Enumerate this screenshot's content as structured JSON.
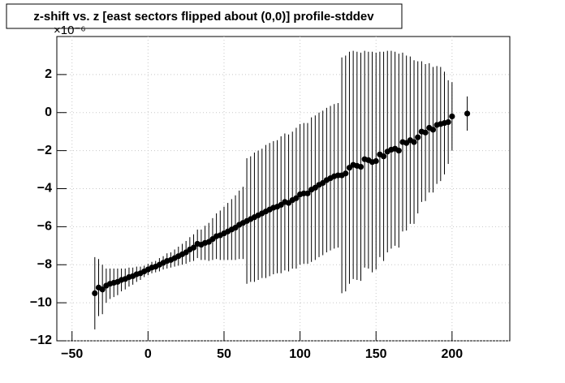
{
  "chart_data": {
    "type": "errorbar",
    "title": "z-shift vs. z [east sectors flipped about (0,0)] profile-stddev",
    "y_exponent_label": "×10⁻⁶",
    "x": [
      -35,
      -32.5,
      -30,
      -27.5,
      -25,
      -22.5,
      -20,
      -17.5,
      -15,
      -12.5,
      -10,
      -7.5,
      -5,
      -2.5,
      0,
      2.5,
      5,
      7.5,
      10,
      12.5,
      15,
      17.5,
      20,
      22.5,
      25,
      27.5,
      30,
      32.5,
      35,
      37.5,
      40,
      42.5,
      45,
      47.5,
      50,
      52.5,
      55,
      57.5,
      60,
      62.5,
      65,
      67.5,
      70,
      72.5,
      75,
      77.5,
      80,
      82.5,
      85,
      87.5,
      90,
      92.5,
      95,
      97.5,
      100,
      102.5,
      105,
      107.5,
      110,
      112.5,
      115,
      117.5,
      120,
      122.5,
      125,
      127.5,
      130,
      132.5,
      135,
      137.5,
      140,
      142.5,
      145,
      147.5,
      150,
      152.5,
      155,
      157.5,
      160,
      162.5,
      165,
      167.5,
      170,
      172.5,
      175,
      177.5,
      180,
      182.5,
      185,
      187.5,
      190,
      192.5,
      195,
      197.5,
      200,
      210
    ],
    "series": [
      {
        "color": "#000000",
        "values": [
          -9.5,
          -9.2,
          -9.3,
          -9.1,
          -9.0,
          -8.95,
          -8.9,
          -8.8,
          -8.75,
          -8.65,
          -8.6,
          -8.5,
          -8.45,
          -8.35,
          -8.25,
          -8.15,
          -8.1,
          -8.0,
          -7.9,
          -7.8,
          -7.75,
          -7.65,
          -7.55,
          -7.45,
          -7.35,
          -7.2,
          -7.1,
          -6.9,
          -6.95,
          -6.85,
          -6.8,
          -6.65,
          -6.5,
          -6.45,
          -6.35,
          -6.25,
          -6.15,
          -6.05,
          -5.9,
          -5.8,
          -5.7,
          -5.6,
          -5.5,
          -5.4,
          -5.3,
          -5.2,
          -5.1,
          -5.0,
          -4.95,
          -4.85,
          -4.7,
          -4.75,
          -4.6,
          -4.5,
          -4.3,
          -4.25,
          -4.25,
          -4.05,
          -3.95,
          -3.8,
          -3.7,
          -3.55,
          -3.45,
          -3.35,
          -3.3,
          -3.3,
          -3.2,
          -2.9,
          -2.75,
          -2.8,
          -2.85,
          -2.45,
          -2.5,
          -2.6,
          -2.55,
          -2.2,
          -2.3,
          -2.05,
          -1.95,
          -1.9,
          -2.0,
          -1.55,
          -1.6,
          -1.45,
          -1.55,
          -1.3,
          -1.0,
          -1.05,
          -0.8,
          -0.9,
          -0.65,
          -0.6,
          -0.55,
          -0.5,
          -0.2,
          -0.05
        ],
        "errors": [
          1.9,
          1.5,
          1.3,
          0.9,
          0.8,
          0.75,
          0.7,
          0.6,
          0.55,
          0.5,
          0.45,
          0.4,
          0.35,
          0.3,
          0.3,
          0.3,
          0.3,
          0.35,
          0.35,
          0.4,
          0.4,
          0.45,
          0.5,
          0.55,
          0.6,
          0.65,
          0.7,
          0.75,
          0.8,
          0.9,
          1.0,
          1.1,
          1.2,
          1.3,
          1.4,
          1.5,
          1.6,
          1.7,
          1.8,
          1.9,
          3.3,
          3.3,
          3.4,
          3.4,
          3.4,
          3.5,
          3.5,
          3.5,
          3.5,
          3.6,
          3.6,
          3.6,
          3.6,
          3.7,
          3.7,
          3.7,
          3.7,
          3.8,
          3.8,
          3.8,
          3.8,
          3.8,
          3.8,
          3.8,
          3.8,
          6.2,
          6.2,
          6.1,
          6.0,
          6.0,
          6.0,
          5.7,
          5.7,
          5.8,
          5.7,
          5.4,
          5.5,
          5.3,
          5.2,
          5.1,
          5.1,
          4.7,
          4.6,
          4.4,
          4.3,
          4.0,
          3.7,
          3.6,
          3.4,
          3.3,
          3.1,
          3.0,
          2.7,
          2.2,
          1.8,
          0.9
        ]
      }
    ],
    "xlim": [
      -60,
      238
    ],
    "ylim": [
      -12,
      4
    ],
    "xticks": [
      {
        "value": -50,
        "label": "−50"
      },
      0,
      50,
      100,
      150,
      200
    ],
    "yticks": [
      {
        "value": -12,
        "label": "−12"
      },
      {
        "value": -10,
        "label": "−10"
      },
      {
        "value": -8,
        "label": "−8"
      },
      {
        "value": -6,
        "label": "−6"
      },
      {
        "value": -4,
        "label": "−4"
      },
      {
        "value": -2,
        "label": "−2"
      },
      0,
      2
    ],
    "grid": true
  }
}
